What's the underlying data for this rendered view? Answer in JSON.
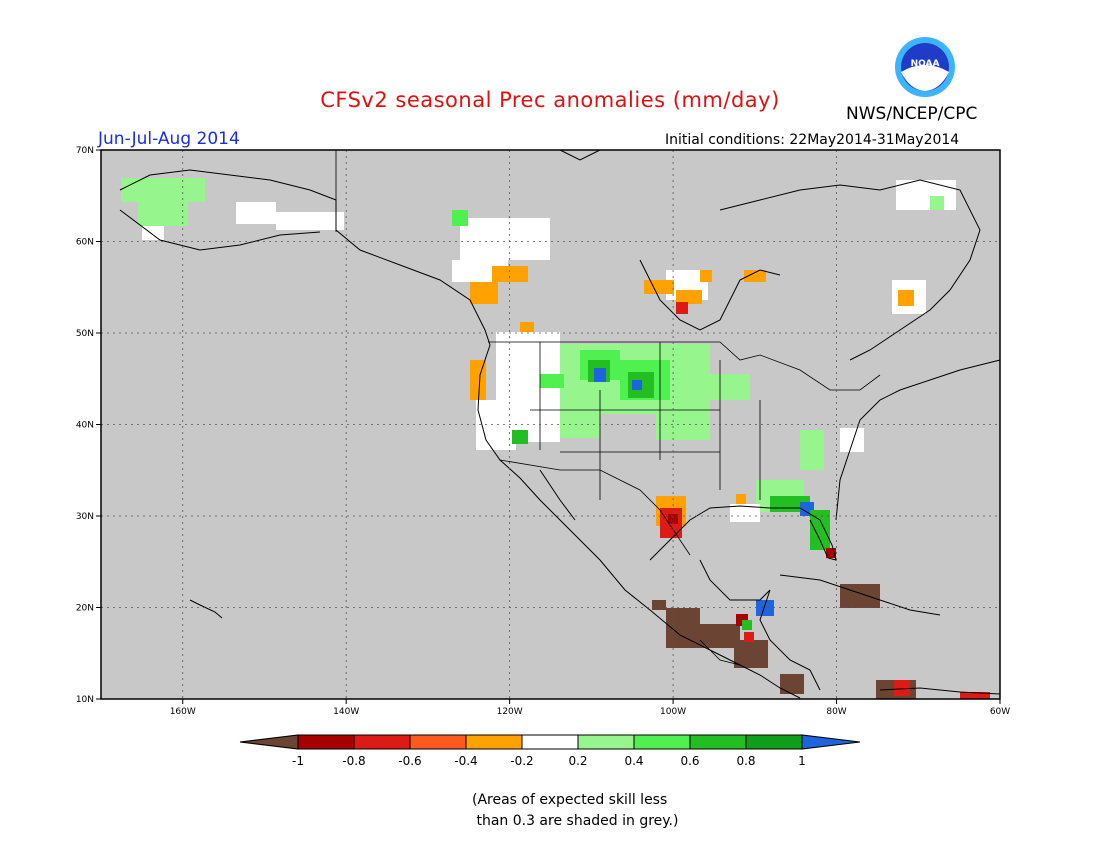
{
  "header": {
    "title": "CFSv2 seasonal Prec anomalies (mm/day)",
    "agency": "NWS/NCEP/CPC",
    "logo_text": "NOAA",
    "season": "Jun-Jul-Aug 2014",
    "initial_conditions": "Initial conditions: 22May2014-31May2014"
  },
  "axes": {
    "lon_labels": [
      "160W",
      "140W",
      "120W",
      "100W",
      "80W",
      "60W"
    ],
    "lat_labels": [
      "70N",
      "60N",
      "50N",
      "40N",
      "30N",
      "20N",
      "10N"
    ],
    "lon_range": [
      -170,
      -60
    ],
    "lat_range": [
      10,
      70
    ]
  },
  "colorbar": {
    "tick_labels": [
      "-1",
      "-0.8",
      "-0.6",
      "-0.4",
      "-0.2",
      "0.2",
      "0.4",
      "0.6",
      "0.8",
      "1"
    ],
    "colors": [
      "#6b4433",
      "#a80000",
      "#dc1c14",
      "#ff5a1e",
      "#ffa200",
      "#ffffff",
      "#96f58c",
      "#50f050",
      "#22be22",
      "#0f9e1a",
      "#1e64dc"
    ]
  },
  "footnote": "(Areas of expected skill less\n than 0.3 are shaded in grey.)",
  "colors": {
    "grey_mask": "#c8c8c8",
    "title": "#e01010",
    "season": "#1a2ee0"
  }
}
